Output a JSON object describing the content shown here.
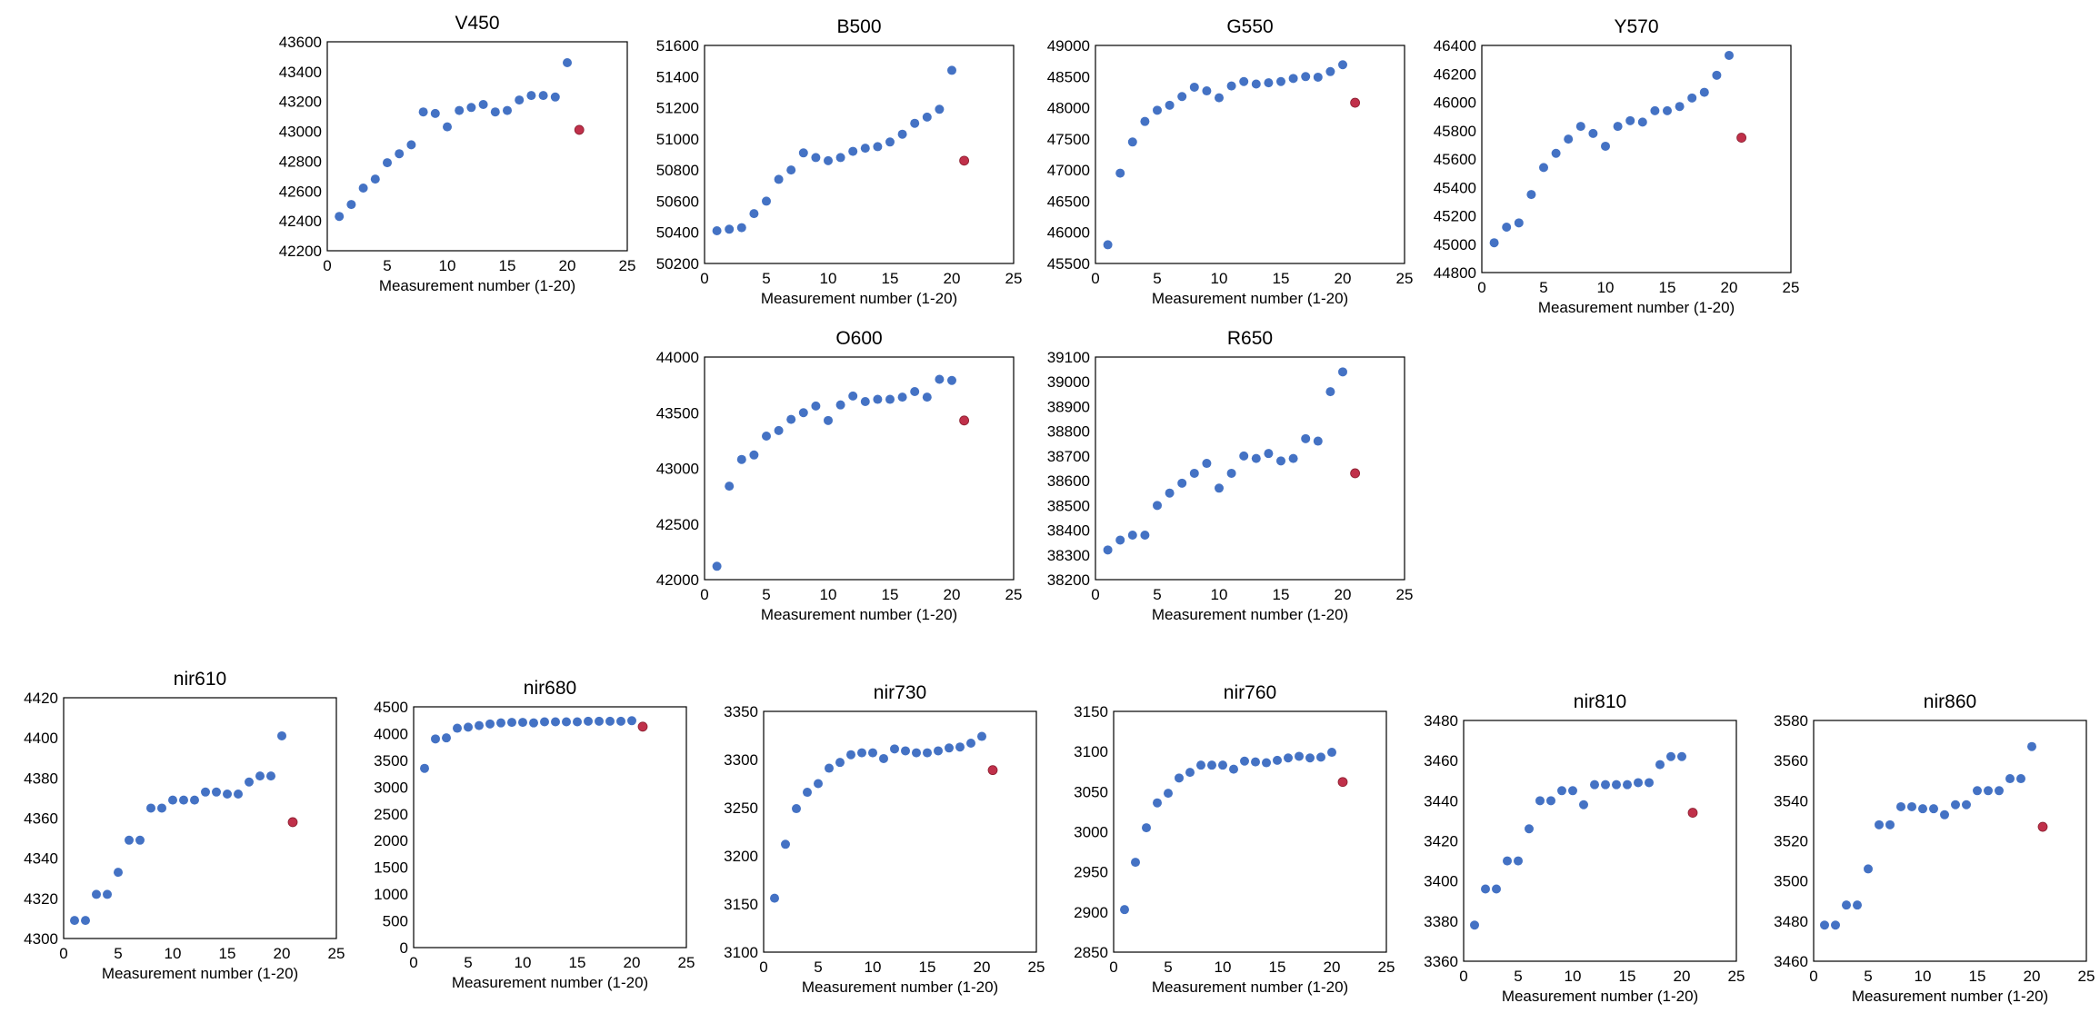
{
  "figure": {
    "colors": {
      "main_point": "#4472c4",
      "highlight_point": "#c0304a",
      "axis": "#000000",
      "text": "#000000"
    }
  },
  "chart_data": [
    {
      "id": "v450",
      "type": "scatter",
      "title": "V450",
      "xlabel": "Measurement number (1-20)",
      "ylabel": "",
      "xlim": [
        0,
        25
      ],
      "xticks": [
        0,
        5,
        10,
        15,
        20,
        25
      ],
      "ylim": [
        42200,
        43600
      ],
      "yticks": [
        42200,
        42400,
        42600,
        42800,
        43000,
        43200,
        43400,
        43600
      ],
      "x": [
        1,
        2,
        3,
        4,
        5,
        6,
        7,
        8,
        9,
        10,
        11,
        12,
        13,
        14,
        15,
        16,
        17,
        18,
        19,
        20
      ],
      "y": [
        42430,
        42510,
        42620,
        42680,
        42790,
        42850,
        42910,
        43130,
        43120,
        43030,
        43140,
        43160,
        43180,
        43130,
        43140,
        43210,
        43240,
        43240,
        43230,
        43460
      ],
      "highlight": {
        "x": 21,
        "y": 43010
      }
    },
    {
      "id": "b500",
      "type": "scatter",
      "title": "B500",
      "xlabel": "Measurement number (1-20)",
      "ylabel": "",
      "xlim": [
        0,
        25
      ],
      "xticks": [
        0,
        5,
        10,
        15,
        20,
        25
      ],
      "ylim": [
        50200,
        51600
      ],
      "yticks": [
        50200,
        50400,
        50600,
        50800,
        51000,
        51200,
        51400,
        51600
      ],
      "x": [
        1,
        2,
        3,
        4,
        5,
        6,
        7,
        8,
        9,
        10,
        11,
        12,
        13,
        14,
        15,
        16,
        17,
        18,
        19,
        20
      ],
      "y": [
        50410,
        50420,
        50430,
        50520,
        50600,
        50740,
        50800,
        50910,
        50880,
        50860,
        50880,
        50920,
        50940,
        50950,
        50980,
        51030,
        51100,
        51140,
        51190,
        51440
      ],
      "highlight": {
        "x": 21,
        "y": 50860
      }
    },
    {
      "id": "g550",
      "type": "scatter",
      "title": "G550",
      "xlabel": "Measurement number (1-20)",
      "ylabel": "",
      "xlim": [
        0,
        25
      ],
      "xticks": [
        0,
        5,
        10,
        15,
        20,
        25
      ],
      "ylim": [
        45500,
        49000
      ],
      "yticks": [
        45500,
        46000,
        46500,
        47000,
        47500,
        48000,
        48500,
        49000
      ],
      "x": [
        1,
        2,
        3,
        4,
        5,
        6,
        7,
        8,
        9,
        10,
        11,
        12,
        13,
        14,
        15,
        16,
        17,
        18,
        19,
        20
      ],
      "y": [
        45800,
        46950,
        47450,
        47780,
        47960,
        48040,
        48180,
        48330,
        48270,
        48160,
        48350,
        48420,
        48380,
        48400,
        48420,
        48470,
        48500,
        48490,
        48580,
        48690
      ],
      "highlight": {
        "x": 21,
        "y": 48080
      }
    },
    {
      "id": "y570",
      "type": "scatter",
      "title": "Y570",
      "xlabel": "Measurement number (1-20)",
      "ylabel": "",
      "xlim": [
        0,
        25
      ],
      "xticks": [
        0,
        5,
        10,
        15,
        20,
        25
      ],
      "ylim": [
        44800,
        46400
      ],
      "yticks": [
        44800,
        45000,
        45200,
        45400,
        45600,
        45800,
        46000,
        46200,
        46400
      ],
      "x": [
        1,
        2,
        3,
        4,
        5,
        6,
        7,
        8,
        9,
        10,
        11,
        12,
        13,
        14,
        15,
        16,
        17,
        18,
        19,
        20
      ],
      "y": [
        45010,
        45120,
        45150,
        45350,
        45540,
        45640,
        45740,
        45830,
        45780,
        45690,
        45830,
        45870,
        45860,
        45940,
        45940,
        45970,
        46030,
        46070,
        46190,
        46330
      ],
      "highlight": {
        "x": 21,
        "y": 45750
      }
    },
    {
      "id": "o600",
      "type": "scatter",
      "title": "O600",
      "xlabel": "Measurement number (1-20)",
      "ylabel": "",
      "xlim": [
        0,
        25
      ],
      "xticks": [
        0,
        5,
        10,
        15,
        20,
        25
      ],
      "ylim": [
        42000,
        44000
      ],
      "yticks": [
        42000,
        42500,
        43000,
        43500,
        44000
      ],
      "x": [
        1,
        2,
        3,
        4,
        5,
        6,
        7,
        8,
        9,
        10,
        11,
        12,
        13,
        14,
        15,
        16,
        17,
        18,
        19,
        20
      ],
      "y": [
        42120,
        42840,
        43080,
        43120,
        43290,
        43340,
        43440,
        43500,
        43560,
        43430,
        43570,
        43650,
        43600,
        43620,
        43620,
        43640,
        43690,
        43640,
        43800,
        43790
      ],
      "highlight": {
        "x": 21,
        "y": 43430
      }
    },
    {
      "id": "r650",
      "type": "scatter",
      "title": "R650",
      "xlabel": "Measurement number (1-20)",
      "ylabel": "",
      "xlim": [
        0,
        25
      ],
      "xticks": [
        0,
        5,
        10,
        15,
        20,
        25
      ],
      "ylim": [
        38200,
        39100
      ],
      "yticks": [
        38200,
        38300,
        38400,
        38500,
        38600,
        38700,
        38800,
        38900,
        39000,
        39100
      ],
      "x": [
        1,
        2,
        3,
        4,
        5,
        6,
        7,
        8,
        9,
        10,
        11,
        12,
        13,
        14,
        15,
        16,
        17,
        18,
        19,
        20
      ],
      "y": [
        38320,
        38360,
        38380,
        38380,
        38500,
        38550,
        38590,
        38630,
        38670,
        38570,
        38630,
        38700,
        38690,
        38710,
        38680,
        38690,
        38770,
        38760,
        38960,
        39040
      ],
      "highlight": {
        "x": 21,
        "y": 38630
      }
    },
    {
      "id": "nir610",
      "type": "scatter",
      "title": "nir610",
      "xlabel": "Measurement number (1-20)",
      "ylabel": "",
      "xlim": [
        0,
        25
      ],
      "xticks": [
        0,
        5,
        10,
        15,
        20,
        25
      ],
      "ylim": [
        4300,
        4420
      ],
      "yticks": [
        4300,
        4320,
        4340,
        4360,
        4380,
        4400,
        4420
      ],
      "x": [
        1,
        2,
        3,
        4,
        5,
        6,
        7,
        8,
        9,
        10,
        11,
        12,
        13,
        14,
        15,
        16,
        17,
        18,
        19,
        20
      ],
      "y": [
        4309,
        4309,
        4322,
        4322,
        4333,
        4349,
        4349,
        4365,
        4365,
        4369,
        4369,
        4369,
        4373,
        4373,
        4372,
        4372,
        4378,
        4381,
        4381,
        4401
      ],
      "highlight": {
        "x": 21,
        "y": 4358
      }
    },
    {
      "id": "nir680",
      "type": "scatter",
      "title": "nir680",
      "xlabel": "Measurement number (1-20)",
      "ylabel": "",
      "xlim": [
        0,
        25
      ],
      "xticks": [
        0,
        5,
        10,
        15,
        20,
        25
      ],
      "ylim": [
        0,
        4500
      ],
      "yticks": [
        0,
        500,
        1000,
        1500,
        2000,
        2500,
        3000,
        3500,
        4000,
        4500
      ],
      "x": [
        1,
        2,
        3,
        4,
        5,
        6,
        7,
        8,
        9,
        10,
        11,
        12,
        13,
        14,
        15,
        16,
        17,
        18,
        19,
        20
      ],
      "y": [
        3350,
        3900,
        3920,
        4100,
        4120,
        4150,
        4180,
        4200,
        4210,
        4210,
        4200,
        4220,
        4220,
        4220,
        4220,
        4230,
        4230,
        4230,
        4230,
        4240
      ],
      "highlight": {
        "x": 21,
        "y": 4130
      }
    },
    {
      "id": "nir730",
      "type": "scatter",
      "title": "nir730",
      "xlabel": "Measurement number (1-20)",
      "ylabel": "",
      "xlim": [
        0,
        25
      ],
      "xticks": [
        0,
        5,
        10,
        15,
        20,
        25
      ],
      "ylim": [
        3100,
        3350
      ],
      "yticks": [
        3100,
        3150,
        3200,
        3250,
        3300,
        3350
      ],
      "x": [
        1,
        2,
        3,
        4,
        5,
        6,
        7,
        8,
        9,
        10,
        11,
        12,
        13,
        14,
        15,
        16,
        17,
        18,
        19,
        20
      ],
      "y": [
        3156,
        3212,
        3249,
        3266,
        3275,
        3291,
        3297,
        3305,
        3307,
        3307,
        3301,
        3311,
        3309,
        3307,
        3307,
        3309,
        3312,
        3313,
        3317,
        3324
      ],
      "highlight": {
        "x": 21,
        "y": 3289
      }
    },
    {
      "id": "nir760",
      "type": "scatter",
      "title": "nir760",
      "xlabel": "Measurement number (1-20)",
      "ylabel": "",
      "xlim": [
        0,
        25
      ],
      "xticks": [
        0,
        5,
        10,
        15,
        20,
        25
      ],
      "ylim": [
        2850,
        3150
      ],
      "yticks": [
        2850,
        2900,
        2950,
        3000,
        3050,
        3100,
        3150
      ],
      "x": [
        1,
        2,
        3,
        4,
        5,
        6,
        7,
        8,
        9,
        10,
        11,
        12,
        13,
        14,
        15,
        16,
        17,
        18,
        19,
        20
      ],
      "y": [
        2903,
        2962,
        3005,
        3036,
        3048,
        3067,
        3074,
        3083,
        3083,
        3083,
        3078,
        3088,
        3087,
        3086,
        3089,
        3092,
        3094,
        3092,
        3093,
        3099
      ],
      "highlight": {
        "x": 21,
        "y": 3062
      }
    },
    {
      "id": "nir810",
      "type": "scatter",
      "title": "nir810",
      "xlabel": "Measurement number (1-20)",
      "ylabel": "",
      "xlim": [
        0,
        25
      ],
      "xticks": [
        0,
        5,
        10,
        15,
        20,
        25
      ],
      "ylim": [
        3360,
        3480
      ],
      "yticks": [
        3360,
        3380,
        3400,
        3420,
        3440,
        3460,
        3480
      ],
      "x": [
        1,
        2,
        3,
        4,
        5,
        6,
        7,
        8,
        9,
        10,
        11,
        12,
        13,
        14,
        15,
        16,
        17,
        18,
        19,
        20
      ],
      "y": [
        3378,
        3396,
        3396,
        3410,
        3410,
        3426,
        3440,
        3440,
        3445,
        3445,
        3438,
        3448,
        3448,
        3448,
        3448,
        3449,
        3449,
        3458,
        3462,
        3462
      ],
      "highlight": {
        "x": 21,
        "y": 3434
      }
    },
    {
      "id": "nir860",
      "type": "scatter",
      "title": "nir860",
      "xlabel": "Measurement number (1-20)",
      "ylabel": "",
      "xlim": [
        0,
        25
      ],
      "xticks": [
        0,
        5,
        10,
        15,
        20,
        25
      ],
      "ylim": [
        3460,
        3580
      ],
      "yticks": [
        3460,
        3480,
        3500,
        3520,
        3540,
        3560,
        3580
      ],
      "x": [
        1,
        2,
        3,
        4,
        5,
        6,
        7,
        8,
        9,
        10,
        11,
        12,
        13,
        14,
        15,
        16,
        17,
        18,
        19,
        20
      ],
      "y": [
        3478,
        3478,
        3488,
        3488,
        3506,
        3528,
        3528,
        3537,
        3537,
        3536,
        3536,
        3533,
        3538,
        3538,
        3545,
        3545,
        3545,
        3551,
        3551,
        3567
      ],
      "highlight": {
        "x": 21,
        "y": 3527
      }
    }
  ]
}
